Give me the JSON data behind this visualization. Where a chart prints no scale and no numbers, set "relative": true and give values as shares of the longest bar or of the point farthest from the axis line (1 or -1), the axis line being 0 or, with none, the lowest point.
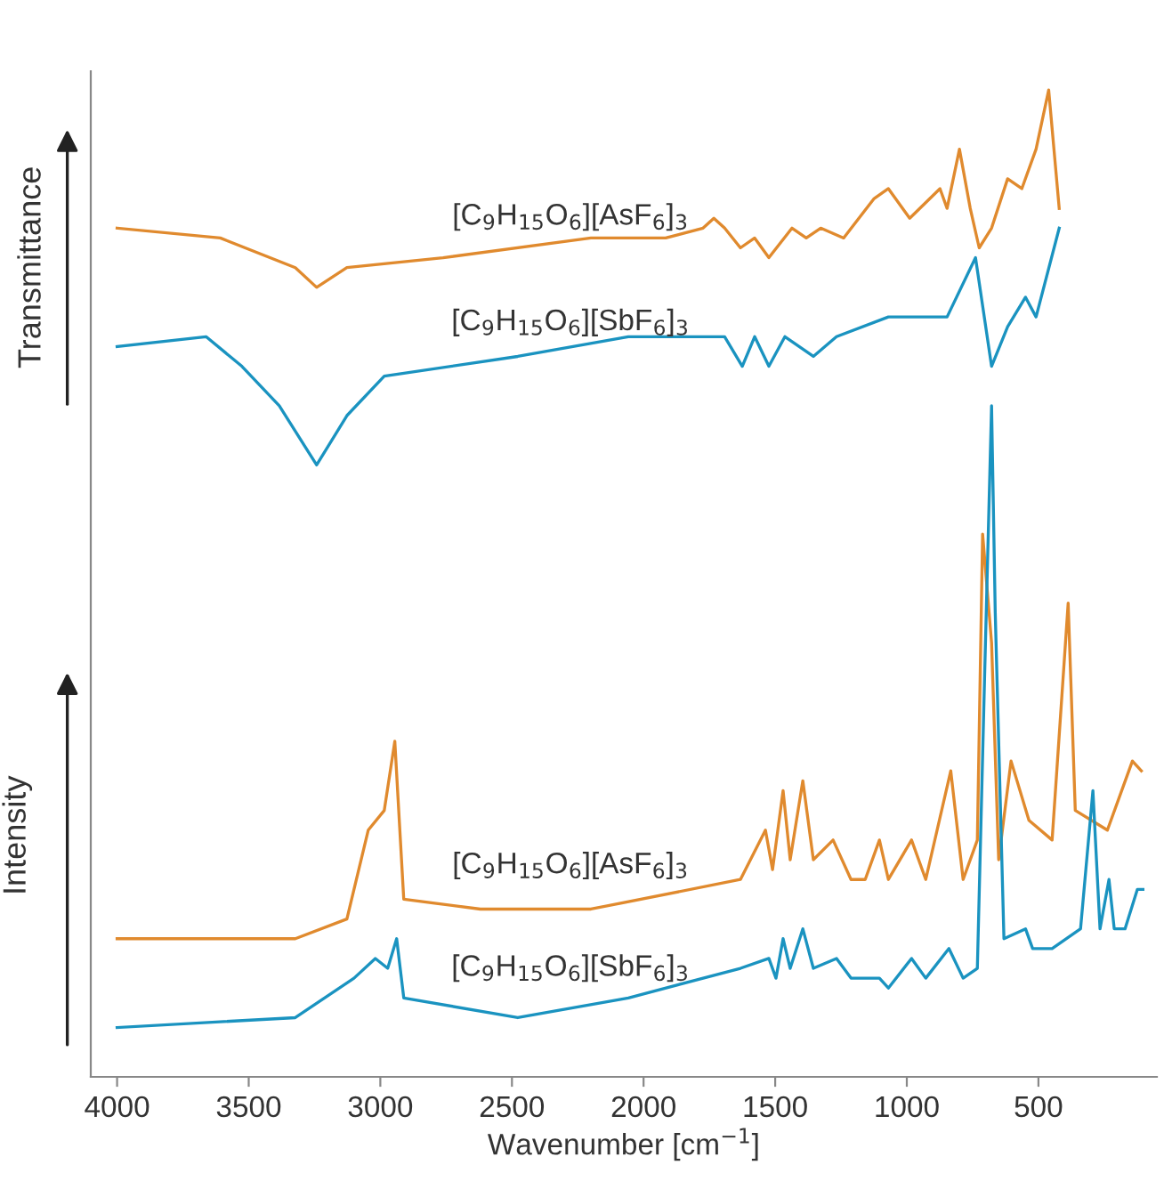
{
  "chart_data": {
    "type": "line",
    "ylabel": "Intensity",
    "xlabel": "Wavenumber [cm$^{−1}$]",
    "annotations": [
      "Transmittance"
    ],
    "relative": true,
    "xlim": [
      4100,
      50
    ],
    "xticks": [
      4000,
      3500,
      3000,
      2500,
      2000,
      1500,
      1000,
      500
    ],
    "grid": false,
    "legend": false,
    "series": [
      {
        "name": "[C$_{9}$H$_{15}$O$_{6}$][AsF$_{6}$]$_{3}$",
        "color": "#e08a2e",
        "x": [
          4000,
          3608,
          3323,
          3242,
          3127,
          2762,
          2200,
          1916,
          1774,
          1733,
          1692,
          1632,
          1578,
          1524,
          1436,
          1382,
          1327,
          1240,
          1124,
          1070,
          989,
          874,
          847,
          800,
          759,
          725,
          678,
          617,
          563,
          509,
          461,
          421
        ],
        "values": [
          0.86,
          0.85,
          0.82,
          0.8,
          0.82,
          0.83,
          0.85,
          0.85,
          0.86,
          0.87,
          0.86,
          0.84,
          0.85,
          0.83,
          0.86,
          0.85,
          0.86,
          0.85,
          0.89,
          0.9,
          0.87,
          0.9,
          0.88,
          0.94,
          0.88,
          0.84,
          0.86,
          0.91,
          0.9,
          0.94,
          1.0,
          0.88
        ]
      },
      {
        "name": "[C$_{9}$H$_{15}$O$_{6}$][SbF$_{6}$]$_{3}$",
        "color": "#1a93c0",
        "x": [
          4000,
          3662,
          3526,
          3384,
          3242,
          3127,
          2985,
          2478,
          2058,
          1692,
          1625,
          1578,
          1524,
          1463,
          1355,
          1267,
          1070,
          955,
          847,
          739,
          678,
          617,
          549,
          509,
          421
        ],
        "values": [
          0.74,
          0.75,
          0.72,
          0.68,
          0.62,
          0.67,
          0.71,
          0.73,
          0.75,
          0.75,
          0.72,
          0.75,
          0.72,
          0.75,
          0.73,
          0.75,
          0.77,
          0.77,
          0.77,
          0.83,
          0.72,
          0.76,
          0.79,
          0.77,
          0.86
        ]
      },
      {
        "name": "[C$_{9}$H$_{15}$O$_{6}$][AsF$_{6}$]$_{3}$",
        "color": "#e08a2e",
        "x": [
          4000,
          3323,
          3127,
          3046,
          2985,
          2945,
          2911,
          2620,
          2200,
          1632,
          1537,
          1510,
          1470,
          1443,
          1395,
          1355,
          1280,
          1212,
          1158,
          1104,
          1070,
          982,
          928,
          833,
          786,
          732,
          712,
          678,
          651,
          604,
          536,
          448,
          387,
          360,
          238,
          143,
          109
        ],
        "values": [
          0.14,
          0.14,
          0.16,
          0.25,
          0.27,
          0.34,
          0.18,
          0.17,
          0.17,
          0.2,
          0.25,
          0.21,
          0.29,
          0.22,
          0.3,
          0.22,
          0.24,
          0.2,
          0.2,
          0.24,
          0.2,
          0.24,
          0.2,
          0.31,
          0.2,
          0.24,
          0.55,
          0.44,
          0.22,
          0.32,
          0.26,
          0.24,
          0.48,
          0.27,
          0.25,
          0.32,
          0.31
        ]
      },
      {
        "name": "[C$_{9}$H$_{15}$O$_{6}$][SbF$_{6}$]$_{3}$",
        "color": "#1a93c0",
        "x": [
          4000,
          3323,
          3100,
          3019,
          2972,
          2938,
          2911,
          2478,
          2058,
          1632,
          1524,
          1497,
          1470,
          1443,
          1395,
          1355,
          1267,
          1212,
          1104,
          1070,
          982,
          928,
          840,
          786,
          732,
          705,
          678,
          664,
          631,
          549,
          522,
          448,
          340,
          293,
          266,
          232,
          212,
          171,
          124,
          103
        ],
        "values": [
          0.05,
          0.06,
          0.1,
          0.12,
          0.11,
          0.14,
          0.08,
          0.06,
          0.08,
          0.11,
          0.12,
          0.1,
          0.14,
          0.11,
          0.15,
          0.11,
          0.12,
          0.1,
          0.1,
          0.09,
          0.12,
          0.1,
          0.13,
          0.1,
          0.11,
          0.4,
          0.68,
          0.47,
          0.14,
          0.15,
          0.13,
          0.13,
          0.15,
          0.29,
          0.15,
          0.2,
          0.15,
          0.15,
          0.19,
          0.19
        ]
      }
    ]
  }
}
